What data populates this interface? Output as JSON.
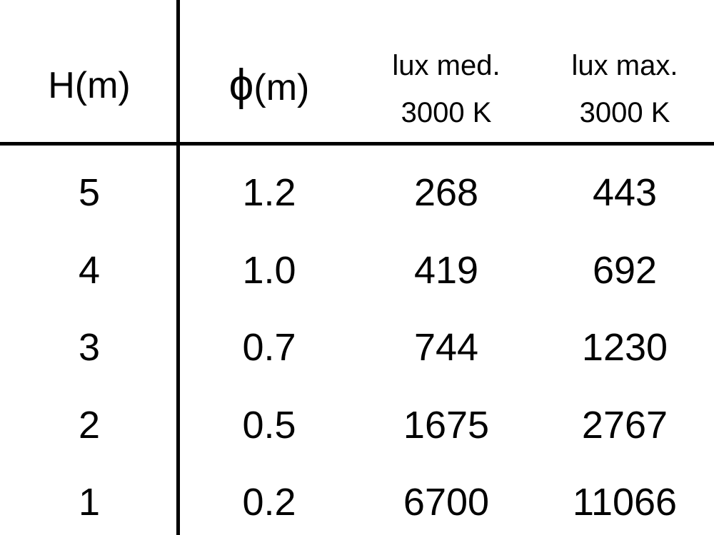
{
  "table": {
    "headers": [
      {
        "lines": [
          "H(m)"
        ]
      },
      {
        "symbol": "ϕ",
        "lines": [
          "(m)"
        ]
      },
      {
        "lines": [
          "lux med.",
          "3000 K"
        ]
      },
      {
        "lines": [
          "lux max.",
          "3000 K"
        ]
      }
    ],
    "rows": [
      [
        "5",
        "1.2",
        "268",
        "443"
      ],
      [
        "4",
        "1.0",
        "419",
        "692"
      ],
      [
        "3",
        "0.7",
        "744",
        "1230"
      ],
      [
        "2",
        "0.5",
        "1675",
        "2767"
      ],
      [
        "1",
        "0.2",
        "6700",
        "11066"
      ]
    ]
  }
}
